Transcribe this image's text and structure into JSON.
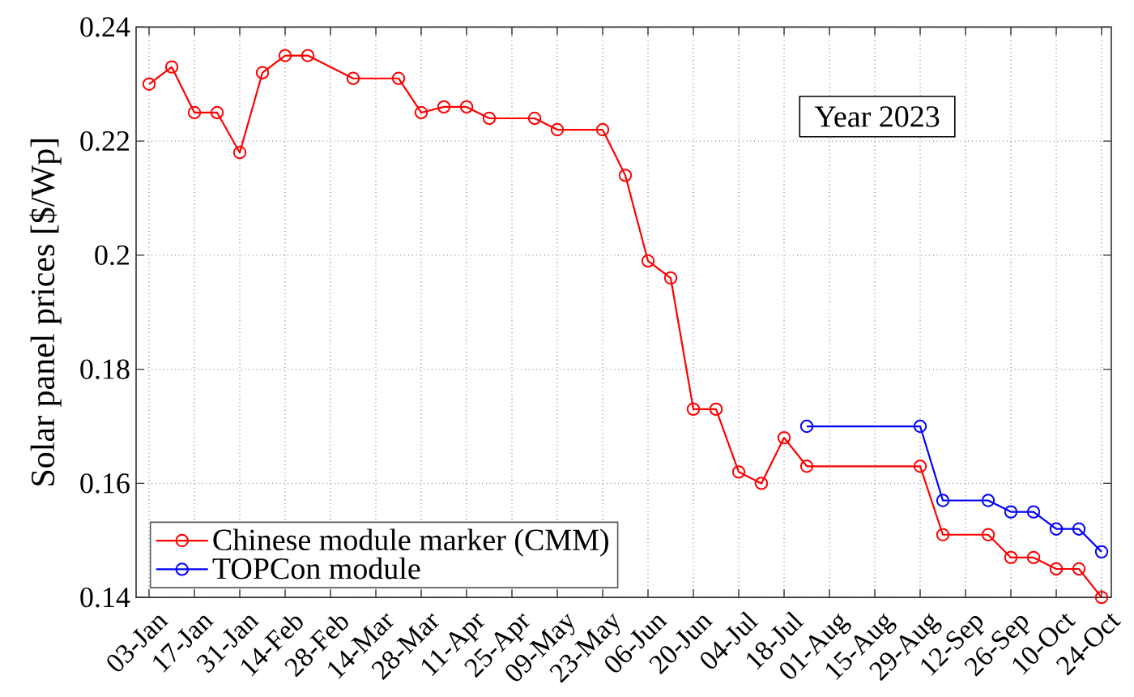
{
  "chart_data": {
    "type": "line",
    "ylabel": "Solar panel prices [$/Wp]",
    "annotations": [
      "Year 2023"
    ],
    "xlim": [
      "2022-12-30",
      "2023-10-27"
    ],
    "ylim": [
      0.14,
      0.24
    ],
    "xticks": [
      {
        "value": "2023-01-03",
        "label": "03-Jan"
      },
      {
        "value": "2023-01-17",
        "label": "17-Jan"
      },
      {
        "value": "2023-01-31",
        "label": "31-Jan"
      },
      {
        "value": "2023-02-14",
        "label": "14-Feb"
      },
      {
        "value": "2023-02-28",
        "label": "28-Feb"
      },
      {
        "value": "2023-03-14",
        "label": "14-Mar"
      },
      {
        "value": "2023-03-28",
        "label": "28-Mar"
      },
      {
        "value": "2023-04-11",
        "label": "11-Apr"
      },
      {
        "value": "2023-04-25",
        "label": "25-Apr"
      },
      {
        "value": "2023-05-09",
        "label": "09-May"
      },
      {
        "value": "2023-05-23",
        "label": "23-May"
      },
      {
        "value": "2023-06-06",
        "label": "06-Jun"
      },
      {
        "value": "2023-06-20",
        "label": "20-Jun"
      },
      {
        "value": "2023-07-04",
        "label": "04-Jul"
      },
      {
        "value": "2023-07-18",
        "label": "18-Jul"
      },
      {
        "value": "2023-08-01",
        "label": "01-Aug"
      },
      {
        "value": "2023-08-15",
        "label": "15-Aug"
      },
      {
        "value": "2023-08-29",
        "label": "29-Aug"
      },
      {
        "value": "2023-09-12",
        "label": "12-Sep"
      },
      {
        "value": "2023-09-26",
        "label": "26-Sep"
      },
      {
        "value": "2023-10-10",
        "label": "10-Oct"
      },
      {
        "value": "2023-10-24",
        "label": "24-Oct"
      }
    ],
    "yticks": [
      0.14,
      0.16,
      0.18,
      0.2,
      0.22,
      0.24
    ],
    "grid": true,
    "legend": "bottom left",
    "marker": "circle",
    "series": [
      {
        "name": "Chinese module marker (CMM)",
        "color": "#ff0000",
        "x": [
          "2023-01-03",
          "2023-01-10",
          "2023-01-17",
          "2023-01-24",
          "2023-01-31",
          "2023-02-07",
          "2023-02-14",
          "2023-02-21",
          "2023-03-07",
          "2023-03-21",
          "2023-03-28",
          "2023-04-04",
          "2023-04-11",
          "2023-04-18",
          "2023-05-02",
          "2023-05-09",
          "2023-05-23",
          "2023-05-30",
          "2023-06-06",
          "2023-06-13",
          "2023-06-20",
          "2023-06-27",
          "2023-07-04",
          "2023-07-11",
          "2023-07-18",
          "2023-07-25",
          "2023-08-29",
          "2023-09-05",
          "2023-09-19",
          "2023-09-26",
          "2023-10-03",
          "2023-10-10",
          "2023-10-17",
          "2023-10-24"
        ],
        "values": [
          0.23,
          0.233,
          0.225,
          0.225,
          0.218,
          0.232,
          0.235,
          0.235,
          0.231,
          0.231,
          0.225,
          0.226,
          0.226,
          0.224,
          0.224,
          0.222,
          0.222,
          0.214,
          0.199,
          0.196,
          0.173,
          0.173,
          0.162,
          0.16,
          0.168,
          0.163,
          0.163,
          0.151,
          0.151,
          0.147,
          0.147,
          0.145,
          0.145,
          0.14
        ]
      },
      {
        "name": "TOPCon module",
        "color": "#0000ff",
        "x": [
          "2023-07-25",
          "2023-08-29",
          "2023-09-05",
          "2023-09-19",
          "2023-09-26",
          "2023-10-03",
          "2023-10-10",
          "2023-10-17",
          "2023-10-24"
        ],
        "values": [
          0.17,
          0.17,
          0.157,
          0.157,
          0.155,
          0.155,
          0.152,
          0.152,
          0.148
        ]
      }
    ]
  }
}
